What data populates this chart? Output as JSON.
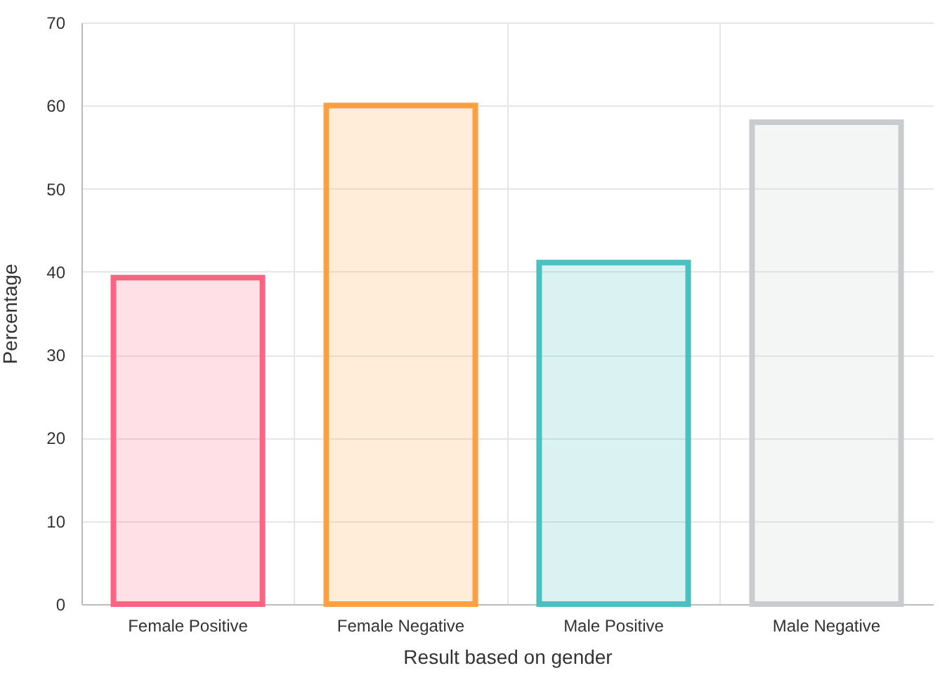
{
  "chart_data": {
    "type": "bar",
    "xlabel": "Result based on gender",
    "ylabel": "Percentage",
    "categories": [
      "Female Positive",
      "Female Negative",
      "Male Positive",
      "Male Negative"
    ],
    "values": [
      39.3,
      60,
      41.1,
      58
    ],
    "colors": [
      "#ff6384",
      "#ff9f40",
      "#4bc0c0",
      "#c9cbcf"
    ],
    "ylim": [
      0,
      70
    ],
    "yticks": [
      0,
      10,
      20,
      30,
      40,
      50,
      60,
      70
    ],
    "grid": true
  }
}
